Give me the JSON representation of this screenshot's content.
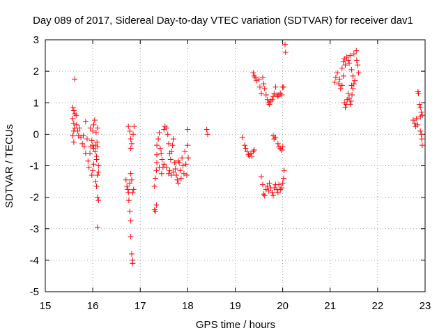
{
  "chart_data": {
    "type": "scatter",
    "title": "Day 089 of 2017, Sidereal Day-to-day VTEC variation (SDTVAR) for receiver dav1",
    "xlabel": "GPS time / hours",
    "ylabel": "SDTVAR / TECUs",
    "xlim": [
      15,
      23
    ],
    "ylim": [
      -5,
      3
    ],
    "xticks": [
      15,
      16,
      17,
      18,
      19,
      20,
      21,
      22,
      23
    ],
    "yticks": [
      -5,
      -4,
      -3,
      -2,
      -1,
      0,
      1,
      2,
      3
    ],
    "grid": true,
    "marker": "+",
    "color": "#ff0000",
    "series": [
      {
        "name": "dav1",
        "points": [
          [
            15.62,
            1.75
          ],
          [
            15.58,
            0.85
          ],
          [
            15.6,
            0.75
          ],
          [
            15.62,
            0.65
          ],
          [
            15.58,
            0.5
          ],
          [
            15.6,
            0.35
          ],
          [
            15.62,
            0.2
          ],
          [
            15.6,
            0.1
          ],
          [
            15.58,
            -0.05
          ],
          [
            15.6,
            -0.25
          ],
          [
            15.65,
            0.6
          ],
          [
            15.66,
            0.3
          ],
          [
            15.68,
            0.1
          ],
          [
            15.7,
            -0.05
          ],
          [
            15.72,
            0.2
          ],
          [
            15.75,
            -0.1
          ],
          [
            15.78,
            -0.3
          ],
          [
            15.8,
            -0.05
          ],
          [
            15.82,
            -0.4
          ],
          [
            15.85,
            -0.6
          ],
          [
            15.85,
            0.4
          ],
          [
            15.88,
            -0.15
          ],
          [
            15.9,
            -0.85
          ],
          [
            15.92,
            -1.05
          ],
          [
            15.94,
            -0.6
          ],
          [
            15.96,
            -0.4
          ],
          [
            15.98,
            -0.2
          ],
          [
            16.0,
            0.1
          ],
          [
            15.95,
            0.2
          ],
          [
            16.02,
            0.3
          ],
          [
            16.04,
            0.45
          ],
          [
            15.98,
            -1.3
          ],
          [
            16.0,
            -1.15
          ],
          [
            16.02,
            -0.95
          ],
          [
            16.05,
            -0.55
          ],
          [
            16.05,
            -0.35
          ],
          [
            16.08,
            -0.8
          ],
          [
            16.1,
            -1.3
          ],
          [
            16.12,
            -1.0
          ],
          [
            16.1,
            -0.4
          ],
          [
            16.08,
            -0.7
          ],
          [
            16.06,
            -1.5
          ],
          [
            16.08,
            -1.65
          ],
          [
            16.1,
            -2.0
          ],
          [
            16.12,
            -2.1
          ],
          [
            16.1,
            -2.95
          ],
          [
            16.12,
            -1.2
          ],
          [
            16.0,
            -0.35
          ],
          [
            16.02,
            -0.45
          ],
          [
            16.1,
            0.2
          ],
          [
            16.07,
            0.05
          ],
          [
            16.09,
            -0.25
          ],
          [
            16.7,
            -1.45
          ],
          [
            16.72,
            -1.65
          ],
          [
            16.74,
            -1.75
          ],
          [
            16.75,
            -1.85
          ],
          [
            16.76,
            -2.1
          ],
          [
            16.78,
            -1.55
          ],
          [
            16.8,
            -1.25
          ],
          [
            16.82,
            -1.45
          ],
          [
            16.78,
            -2.45
          ],
          [
            16.8,
            -2.75
          ],
          [
            16.8,
            -3.25
          ],
          [
            16.82,
            -3.8
          ],
          [
            16.84,
            -4.0
          ],
          [
            16.84,
            -4.1
          ],
          [
            16.75,
            0.25
          ],
          [
            16.78,
            0.1
          ],
          [
            16.8,
            -0.15
          ],
          [
            16.8,
            -0.45
          ],
          [
            16.82,
            -0.3
          ],
          [
            16.85,
            0.0
          ],
          [
            16.87,
            0.25
          ],
          [
            16.86,
            -1.75
          ],
          [
            16.84,
            -1.85
          ],
          [
            17.3,
            -2.4
          ],
          [
            17.32,
            -2.45
          ],
          [
            17.34,
            -2.25
          ],
          [
            17.3,
            -1.65
          ],
          [
            17.32,
            -1.4
          ],
          [
            17.34,
            -1.15
          ],
          [
            17.35,
            -0.9
          ],
          [
            17.35,
            -0.65
          ],
          [
            17.35,
            -0.35
          ],
          [
            17.38,
            -0.15
          ],
          [
            17.4,
            0.05
          ],
          [
            17.42,
            -0.45
          ],
          [
            17.44,
            -0.6
          ],
          [
            17.46,
            -0.8
          ],
          [
            17.48,
            -1.05
          ],
          [
            17.5,
            0.15
          ],
          [
            17.52,
            0.25
          ],
          [
            17.55,
            0.2
          ],
          [
            17.58,
            0.0
          ],
          [
            17.6,
            -0.3
          ],
          [
            17.62,
            -0.6
          ],
          [
            17.64,
            -0.8
          ],
          [
            17.66,
            -0.55
          ],
          [
            17.68,
            -0.35
          ],
          [
            17.7,
            -0.15
          ],
          [
            17.72,
            -0.9
          ],
          [
            17.74,
            -1.1
          ],
          [
            17.76,
            -1.3
          ],
          [
            17.78,
            -1.45
          ],
          [
            17.8,
            -1.55
          ],
          [
            17.82,
            -0.9
          ],
          [
            17.84,
            -1.15
          ],
          [
            17.86,
            -1.4
          ],
          [
            17.88,
            -0.75
          ],
          [
            17.9,
            -1.0
          ],
          [
            17.92,
            -1.25
          ],
          [
            17.94,
            -0.55
          ],
          [
            17.96,
            -0.95
          ],
          [
            17.98,
            -1.3
          ],
          [
            18.0,
            0.15
          ],
          [
            18.0,
            -0.35
          ],
          [
            18.01,
            -0.75
          ],
          [
            17.6,
            -1.25
          ],
          [
            17.55,
            -1.05
          ],
          [
            17.65,
            -1.3
          ],
          [
            17.7,
            -1.2
          ],
          [
            17.75,
            -0.9
          ],
          [
            17.8,
            -0.85
          ],
          [
            17.5,
            -0.95
          ],
          [
            17.45,
            -1.25
          ],
          [
            17.4,
            -1.05
          ],
          [
            17.62,
            -1.15
          ],
          [
            18.4,
            0.15
          ],
          [
            18.42,
            0.0
          ],
          [
            19.15,
            -0.1
          ],
          [
            19.2,
            -0.35
          ],
          [
            19.22,
            -0.45
          ],
          [
            19.25,
            -0.55
          ],
          [
            19.28,
            -0.65
          ],
          [
            19.3,
            -0.7
          ],
          [
            19.33,
            -0.6
          ],
          [
            19.35,
            -0.7
          ],
          [
            19.38,
            -0.55
          ],
          [
            19.4,
            -0.5
          ],
          [
            19.38,
            1.95
          ],
          [
            19.4,
            1.85
          ],
          [
            19.42,
            1.8
          ],
          [
            19.45,
            1.7
          ],
          [
            19.5,
            1.75
          ],
          [
            19.52,
            1.5
          ],
          [
            19.55,
            1.3
          ],
          [
            19.58,
            1.8
          ],
          [
            19.6,
            1.6
          ],
          [
            19.62,
            1.45
          ],
          [
            19.65,
            1.25
          ],
          [
            19.68,
            1.1
          ],
          [
            19.7,
            1.0
          ],
          [
            19.72,
            0.95
          ],
          [
            19.75,
            1.05
          ],
          [
            19.78,
            1.1
          ],
          [
            19.8,
            1.2
          ],
          [
            19.82,
            1.3
          ],
          [
            19.85,
            1.5
          ],
          [
            19.88,
            1.25
          ],
          [
            19.9,
            1.2
          ],
          [
            19.92,
            1.25
          ],
          [
            19.95,
            1.3
          ],
          [
            19.98,
            1.25
          ],
          [
            20.0,
            1.5
          ],
          [
            20.02,
            1.5
          ],
          [
            20.05,
            2.85
          ],
          [
            20.06,
            2.6
          ],
          [
            19.55,
            -1.35
          ],
          [
            19.58,
            -1.6
          ],
          [
            19.6,
            -1.9
          ],
          [
            19.62,
            -1.95
          ],
          [
            19.65,
            -1.75
          ],
          [
            19.68,
            -1.65
          ],
          [
            19.7,
            -1.8
          ],
          [
            19.72,
            -1.55
          ],
          [
            19.75,
            -1.7
          ],
          [
            19.78,
            -1.85
          ],
          [
            19.8,
            -1.95
          ],
          [
            19.82,
            -1.7
          ],
          [
            19.85,
            -1.6
          ],
          [
            19.88,
            -1.75
          ],
          [
            19.9,
            -1.85
          ],
          [
            19.92,
            -1.6
          ],
          [
            19.95,
            -1.75
          ],
          [
            19.98,
            -1.7
          ],
          [
            20.0,
            -1.55
          ],
          [
            20.02,
            -1.4
          ],
          [
            20.03,
            -1.15
          ],
          [
            19.8,
            -0.05
          ],
          [
            19.82,
            -0.15
          ],
          [
            19.85,
            -0.1
          ],
          [
            19.9,
            -0.3
          ],
          [
            19.92,
            -0.4
          ],
          [
            19.95,
            -0.45
          ],
          [
            19.98,
            -0.5
          ],
          [
            20.0,
            -0.4
          ],
          [
            21.1,
            1.65
          ],
          [
            21.12,
            1.8
          ],
          [
            21.15,
            1.95
          ],
          [
            21.18,
            1.6
          ],
          [
            21.2,
            1.75
          ],
          [
            21.22,
            1.45
          ],
          [
            21.25,
            2.1
          ],
          [
            21.28,
            2.3
          ],
          [
            21.3,
            2.4
          ],
          [
            21.32,
            2.2
          ],
          [
            21.3,
            1.0
          ],
          [
            21.32,
            0.85
          ],
          [
            21.34,
            0.95
          ],
          [
            21.36,
            1.1
          ],
          [
            21.38,
            1.3
          ],
          [
            21.4,
            1.15
          ],
          [
            21.42,
            0.95
          ],
          [
            21.44,
            1.05
          ],
          [
            21.46,
            1.25
          ],
          [
            21.48,
            1.45
          ],
          [
            21.5,
            1.6
          ],
          [
            21.35,
            2.45
          ],
          [
            21.38,
            2.35
          ],
          [
            21.4,
            2.25
          ],
          [
            21.42,
            2.5
          ],
          [
            21.45,
            2.05
          ],
          [
            21.48,
            1.85
          ],
          [
            21.5,
            2.55
          ],
          [
            21.55,
            2.65
          ],
          [
            21.58,
            2.2
          ],
          [
            21.6,
            1.95
          ],
          [
            21.25,
            1.55
          ],
          [
            21.28,
            1.85
          ],
          [
            21.45,
            1.55
          ],
          [
            21.52,
            1.7
          ],
          [
            21.56,
            2.35
          ],
          [
            22.75,
            0.45
          ],
          [
            22.78,
            0.35
          ],
          [
            22.8,
            0.25
          ],
          [
            22.82,
            0.5
          ],
          [
            22.84,
            0.3
          ],
          [
            22.85,
            1.35
          ],
          [
            22.86,
            1.3
          ],
          [
            22.88,
            0.95
          ],
          [
            22.9,
            0.85
          ],
          [
            22.92,
            0.7
          ],
          [
            22.9,
            0.55
          ],
          [
            22.93,
            -0.15
          ],
          [
            22.94,
            -0.35
          ],
          [
            22.92,
            0.0
          ],
          [
            22.9,
            0.1
          ],
          [
            22.94,
            0.6
          ]
        ]
      }
    ]
  }
}
